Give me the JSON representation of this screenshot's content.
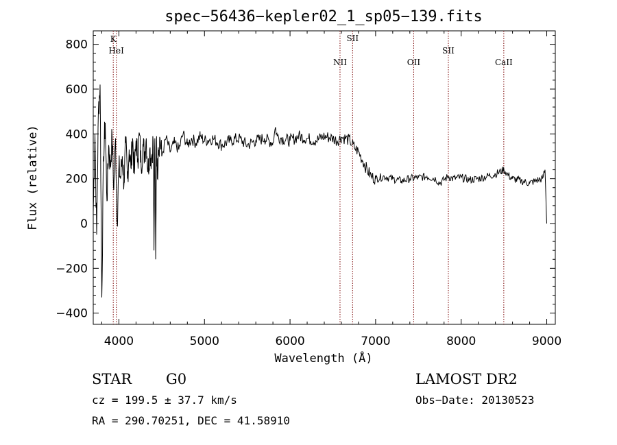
{
  "chart_data": {
    "type": "line",
    "title": "spec−56436−kepler02_1_sp05−139.fits",
    "xlabel": "Wavelength (Å)",
    "ylabel": "Flux (relative)",
    "xlim": [
      3700,
      9100
    ],
    "ylim": [
      -450,
      860
    ],
    "xticks": [
      4000,
      5000,
      6000,
      7000,
      8000,
      9000
    ],
    "xtick_labels": [
      "4000",
      "5000",
      "6000",
      "7000",
      "8000",
      "9000"
    ],
    "yticks": [
      -400,
      -200,
      0,
      200,
      400,
      600,
      800
    ],
    "ytick_labels": [
      "−400",
      "−200",
      "0",
      "200",
      "400",
      "600",
      "800"
    ],
    "series": [
      {
        "x": [
          3700,
          3720,
          3740,
          3760,
          3780,
          3800,
          3820,
          3840,
          3860,
          3880,
          3900,
          3920,
          3940,
          3960,
          3980,
          4000,
          4020,
          4040,
          4060,
          4080,
          4100,
          4120,
          4140,
          4160,
          4180,
          4200,
          4220,
          4240,
          4260,
          4280,
          4300,
          4320,
          4340,
          4360,
          4380,
          4400,
          4410,
          4420,
          4430,
          4440,
          4450,
          4460,
          4480,
          4500,
          4550,
          4600,
          4650,
          4700,
          4750,
          4800,
          4850,
          4900,
          4950,
          5000,
          5100,
          5200,
          5300,
          5400,
          5500,
          5600,
          5700,
          5800,
          5830,
          5850,
          5900,
          6000,
          6100,
          6200,
          6300,
          6400,
          6500,
          6550,
          6600,
          6650,
          6700,
          6750,
          6800,
          6850,
          6900,
          6950,
          7000,
          7100,
          7200,
          7300,
          7400,
          7500,
          7600,
          7700,
          7750,
          7800,
          7850,
          7900,
          8000,
          8100,
          8200,
          8300,
          8400,
          8500,
          8550,
          8600,
          8700,
          8800,
          8900,
          8950,
          8980,
          9000
        ],
        "y": [
          50,
          400,
          -50,
          500,
          620,
          -330,
          300,
          450,
          100,
          350,
          250,
          390,
          150,
          380,
          0,
          250,
          200,
          300,
          180,
          360,
          200,
          330,
          250,
          380,
          220,
          370,
          290,
          400,
          250,
          350,
          310,
          380,
          230,
          330,
          290,
          370,
          -120,
          380,
          -160,
          390,
          200,
          340,
          380,
          300,
          380,
          320,
          360,
          330,
          400,
          350,
          380,
          360,
          390,
          370,
          380,
          350,
          370,
          380,
          350,
          370,
          380,
          360,
          430,
          390,
          380,
          370,
          390,
          380,
          370,
          390,
          380,
          370,
          385,
          380,
          370,
          340,
          320,
          280,
          240,
          210,
          200,
          210,
          200,
          190,
          200,
          205,
          210,
          200,
          180,
          195,
          210,
          200,
          205,
          195,
          200,
          210,
          220,
          240,
          215,
          200,
          190,
          180,
          195,
          200,
          240,
          0
        ]
      }
    ],
    "lines": [
      {
        "label": "K",
        "x": 3934
      },
      {
        "label": "HeI",
        "x": 3970
      },
      {
        "label": "NII",
        "x": 6584
      },
      {
        "label": "SII",
        "x": 6731
      },
      {
        "label": "OII",
        "x": 7445
      },
      {
        "label": "SII",
        "x": 7850
      },
      {
        "label": "CaII",
        "x": 8498
      }
    ],
    "line_color": "#7a0000",
    "grid": false
  },
  "info": {
    "object_class": "STAR",
    "subclass": "G0",
    "survey": "LAMOST DR2",
    "cz": "cz = 199.5 ± 37.7 km/s",
    "obs_date": "Obs−Date: 20130523",
    "coords": "RA = 290.70251, DEC =  41.58910"
  }
}
